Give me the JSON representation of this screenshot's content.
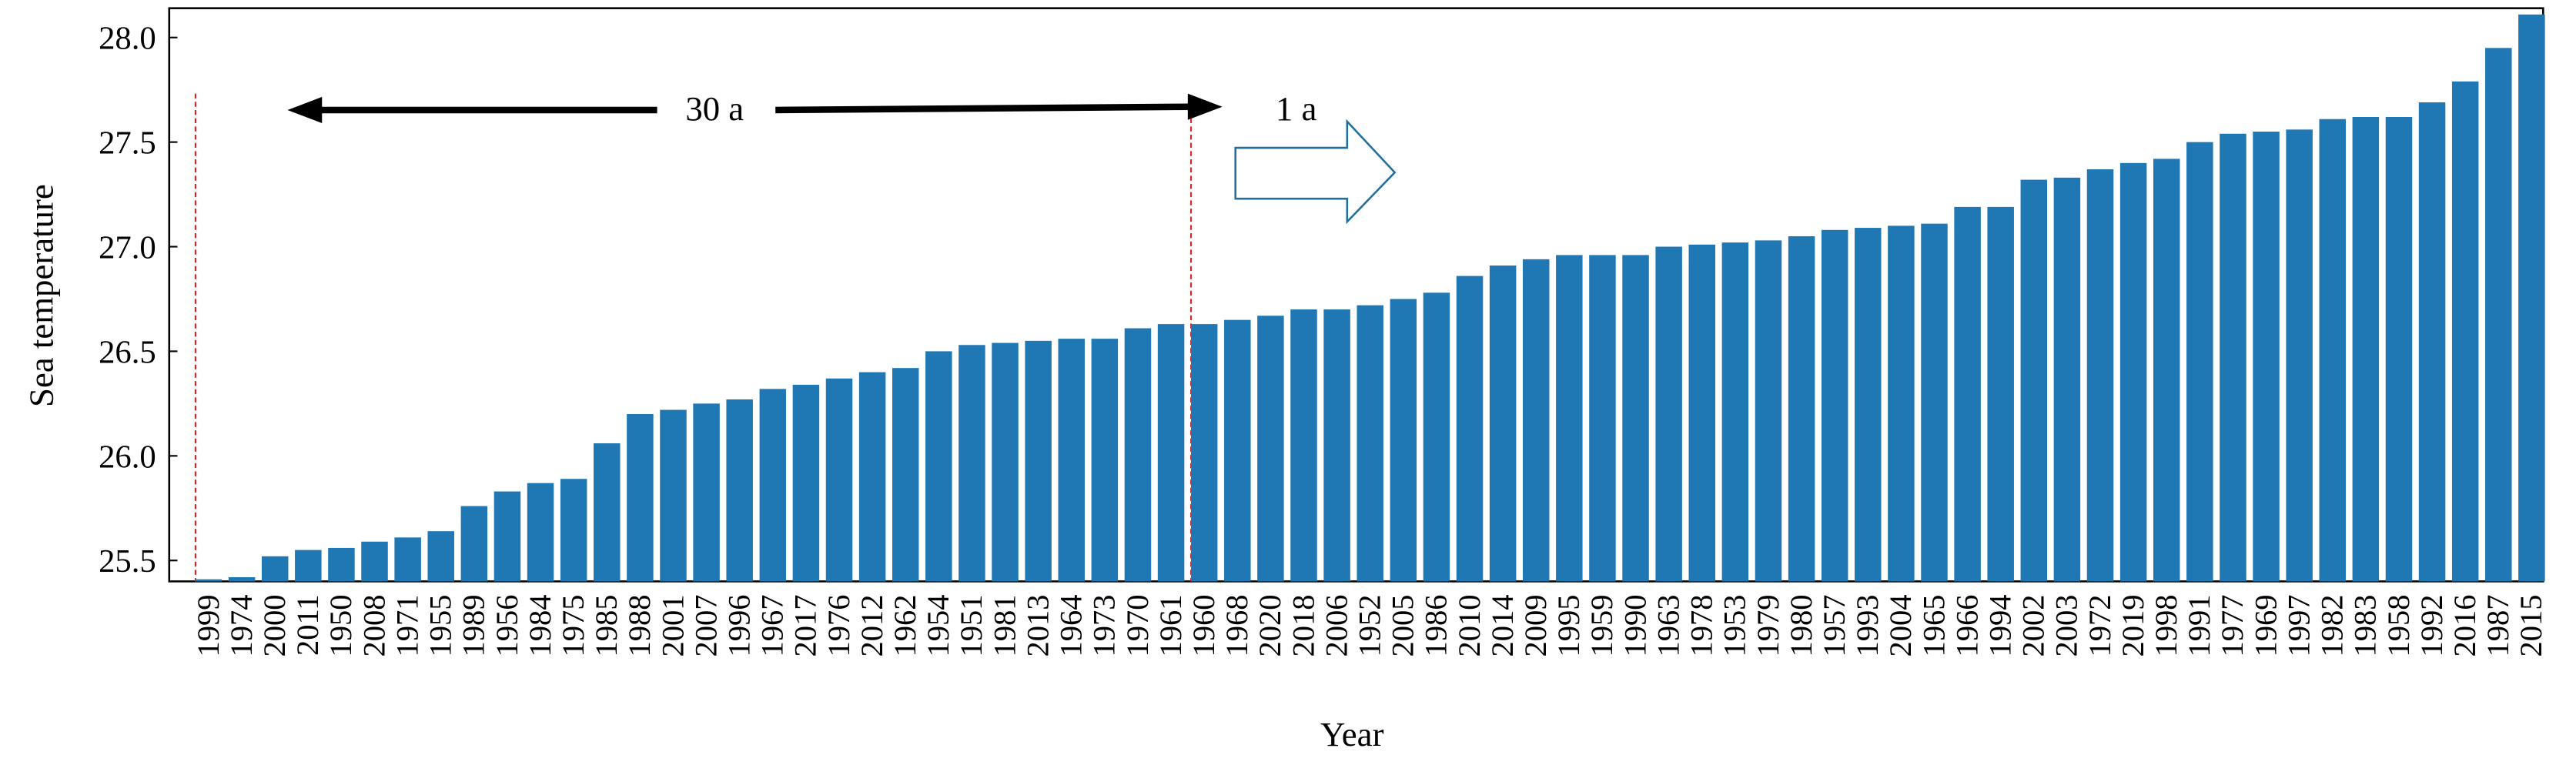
{
  "chart_data": {
    "type": "bar",
    "x_label": "Year",
    "y_label": "Sea temperature",
    "color": "#1f77b4",
    "categories": [
      "1999",
      "1974",
      "2000",
      "2011",
      "1950",
      "2008",
      "1971",
      "1955",
      "1989",
      "1956",
      "1984",
      "1975",
      "1985",
      "1988",
      "2001",
      "2007",
      "1996",
      "1967",
      "2017",
      "1976",
      "2012",
      "1962",
      "1954",
      "1951",
      "1981",
      "2013",
      "1964",
      "1973",
      "1970",
      "1961",
      "1960",
      "1968",
      "2020",
      "2018",
      "2006",
      "1952",
      "2005",
      "1986",
      "2010",
      "2014",
      "2009",
      "1995",
      "1959",
      "1990",
      "1963",
      "1978",
      "1953",
      "1979",
      "1980",
      "1957",
      "1993",
      "2004",
      "1965",
      "1966",
      "1994",
      "2002",
      "2003",
      "1972",
      "2019",
      "1998",
      "1991",
      "1977",
      "1969",
      "1997",
      "1982",
      "1983",
      "1958",
      "1992",
      "2016",
      "1987",
      "2015"
    ],
    "values": [
      25.41,
      25.42,
      25.52,
      25.55,
      25.56,
      25.59,
      25.61,
      25.64,
      25.76,
      25.83,
      25.87,
      25.89,
      26.06,
      26.2,
      26.22,
      26.25,
      26.27,
      26.32,
      26.34,
      26.37,
      26.4,
      26.42,
      26.5,
      26.53,
      26.54,
      26.55,
      26.56,
      26.56,
      26.61,
      26.63,
      26.63,
      26.65,
      26.67,
      26.7,
      26.7,
      26.72,
      26.75,
      26.78,
      26.86,
      26.91,
      26.94,
      26.96,
      26.96,
      26.96,
      27.0,
      27.01,
      27.02,
      27.03,
      27.05,
      27.08,
      27.09,
      27.1,
      27.11,
      27.19,
      27.19,
      27.32,
      27.33,
      27.37,
      27.4,
      27.42,
      27.5,
      27.54,
      27.55,
      27.56,
      27.61,
      27.62,
      27.62,
      27.69,
      27.79,
      27.95,
      28.11
    ],
    "ylim": [
      25.4,
      28.14
    ],
    "yticks": [
      {
        "value": 25.5,
        "label": "25.5"
      },
      {
        "value": 26,
        "label": "26.0"
      },
      {
        "value": 26.5,
        "label": "26.5"
      },
      {
        "value": 27,
        "label": "27.0"
      },
      {
        "value": 27.5,
        "label": "27.5"
      },
      {
        "value": 28,
        "label": "28.0"
      }
    ],
    "annotations": [
      "30 a",
      "1 a"
    ]
  }
}
